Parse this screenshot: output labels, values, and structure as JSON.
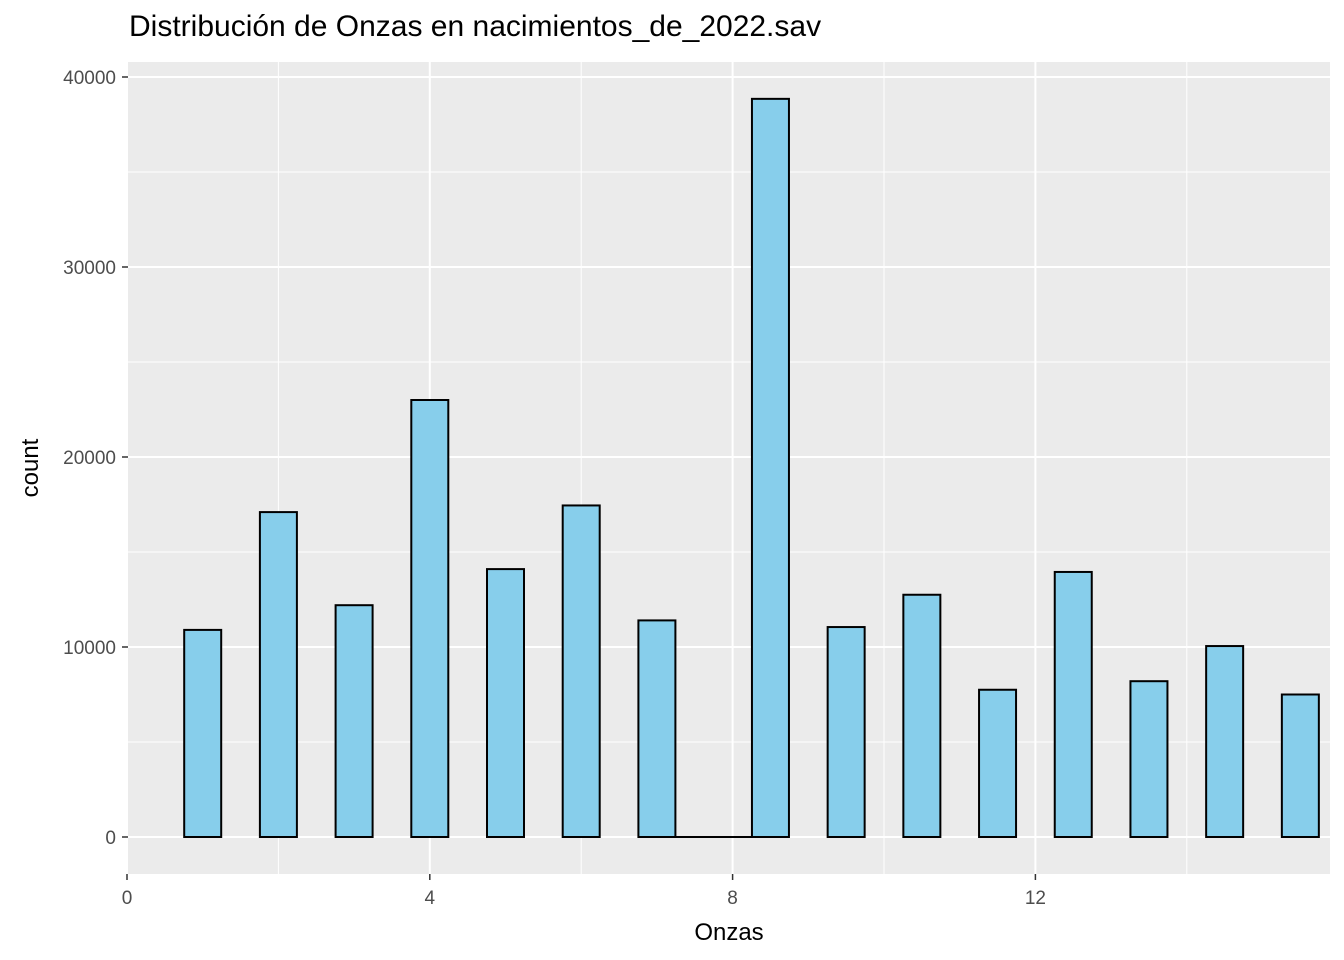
{
  "chart_data": {
    "type": "bar",
    "title": "Distribución de Onzas en nacimientos_de_2022.sav",
    "xlabel": "Onzas",
    "ylabel": "count",
    "x": [
      1,
      2,
      3,
      4,
      5,
      6,
      7,
      8.5,
      9.5,
      10.5,
      11.5,
      12.5,
      13.5,
      14.5,
      15.5
    ],
    "values": [
      10900,
      17100,
      12200,
      23000,
      14100,
      17450,
      11400,
      38850,
      11050,
      12750,
      7750,
      13950,
      8200,
      10050,
      7500
    ],
    "xlim": [
      0,
      15.5
    ],
    "ylim": [
      0,
      40000
    ],
    "xticks": [
      0,
      4,
      8,
      12
    ],
    "yticks": [
      0,
      10000,
      20000,
      30000,
      40000
    ],
    "grid": true,
    "colors": {
      "panel": "#ebebeb",
      "grid": "#ffffff",
      "bar_fill": "#87ceeb",
      "bar_stroke": "#000000",
      "tick_text": "#4d4d4d",
      "text": "#000000"
    }
  }
}
